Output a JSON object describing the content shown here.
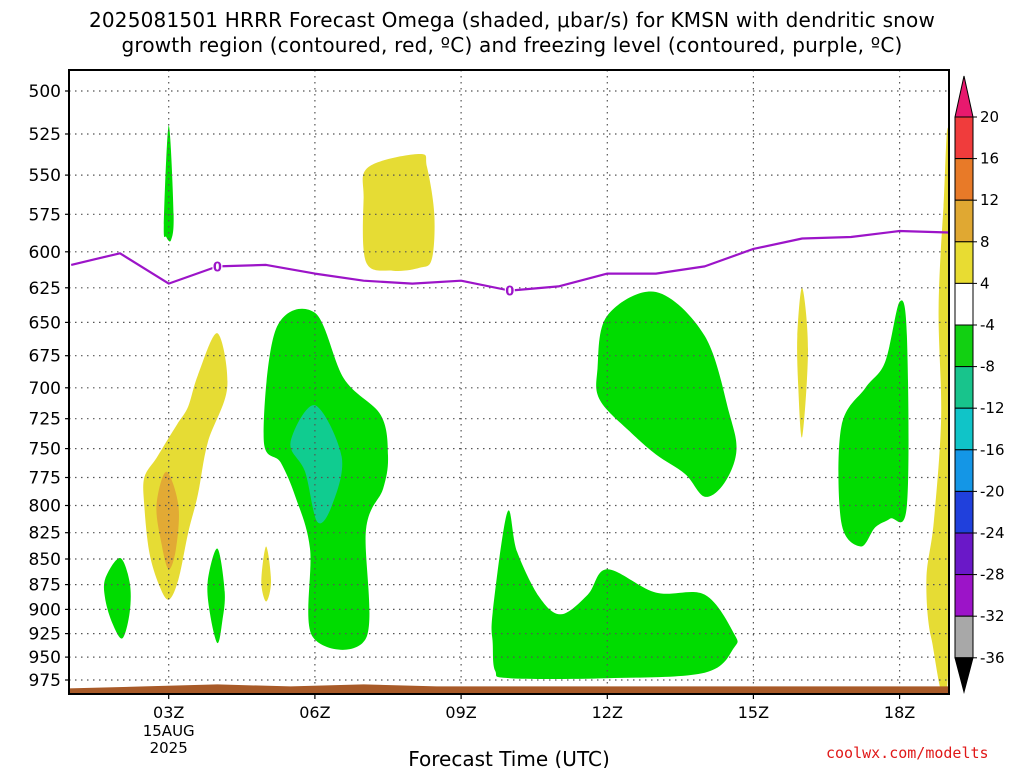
{
  "title_lines": [
    "2025081501 HRRR Forecast Omega (shaded, μbar/s) for KMSN with dendritic snow",
    "growth region (contoured, red, ºC) and freezing level (contoured, purple, ºC)"
  ],
  "watermark": "coolwx.com/modelts",
  "chart_data": {
    "type": "heatmap",
    "title": "2025081501 HRRR Forecast Omega (shaded, μbar/s) for KMSN with dendritic snow growth region (contoured, red, ºC) and freezing level (contoured, purple, ºC)",
    "xlabel": "Forecast Time (UTC)",
    "ylabel": "",
    "x_ticks": [
      {
        "hour": 3,
        "label": "03Z",
        "sublabels": [
          "15AUG",
          "2025"
        ]
      },
      {
        "hour": 6,
        "label": "06Z",
        "sublabels": []
      },
      {
        "hour": 9,
        "label": "09Z",
        "sublabels": []
      },
      {
        "hour": 12,
        "label": "12Z",
        "sublabels": []
      },
      {
        "hour": 15,
        "label": "15Z",
        "sublabels": []
      },
      {
        "hour": 18,
        "label": "18Z",
        "sublabels": []
      }
    ],
    "xlim": [
      1,
      19
    ],
    "y_ticks": [
      500,
      525,
      550,
      575,
      600,
      625,
      650,
      675,
      700,
      725,
      750,
      775,
      800,
      825,
      850,
      875,
      900,
      925,
      950,
      975
    ],
    "ylim": [
      478,
      987
    ],
    "y_scale": "log-pressure (inverted)",
    "grid": true,
    "legend": "colorbar-right",
    "colorbar": {
      "labels": [
        "20",
        "16",
        "12",
        "8",
        "4",
        "-4",
        "-8",
        "-12",
        "-16",
        "-20",
        "-24",
        "-28",
        "-32",
        "-36"
      ],
      "colors": [
        "#e8196e",
        "#f03c3c",
        "#e87a28",
        "#e0a832",
        "#e8dc32",
        "#ffffff",
        "#12d012",
        "#18c48c",
        "#10c4c8",
        "#1496e6",
        "#2040dc",
        "#6a18c8",
        "#9c14c8",
        "#a8a8a8",
        "#000000"
      ]
    },
    "omega_regions": [
      {
        "level": "-4 to -8",
        "color": "#00dc00",
        "points": [
          [
            1.7,
            869
          ],
          [
            2.0,
            849
          ],
          [
            2.2,
            873
          ],
          [
            2.2,
            903
          ],
          [
            2.05,
            930
          ],
          [
            1.85,
            915
          ],
          [
            1.7,
            890
          ]
        ]
      },
      {
        "level": "-4 to -8",
        "color": "#00dc00",
        "points": [
          [
            2.9,
            582
          ],
          [
            3.0,
            520
          ],
          [
            3.1,
            575
          ],
          [
            3.05,
            592
          ],
          [
            2.95,
            590
          ]
        ]
      },
      {
        "level": "-4 to -8",
        "color": "#00dc00",
        "points": [
          [
            3.8,
            872
          ],
          [
            4.0,
            840
          ],
          [
            4.15,
            882
          ],
          [
            4.1,
            912
          ],
          [
            4.0,
            935
          ],
          [
            3.85,
            905
          ]
        ]
      },
      {
        "level": "-4 to -8",
        "color": "#00dc00",
        "points": [
          [
            4.95,
            742
          ],
          [
            5.2,
            655
          ],
          [
            6.0,
            643
          ],
          [
            6.6,
            693
          ],
          [
            7.35,
            722
          ],
          [
            7.5,
            756
          ],
          [
            7.4,
            785
          ],
          [
            7.05,
            822
          ],
          [
            7.05,
            930
          ],
          [
            5.95,
            928
          ],
          [
            5.9,
            840
          ],
          [
            5.6,
            792
          ],
          [
            5.3,
            762
          ]
        ]
      },
      {
        "level": "-8 to -12",
        "color": "#10cc90",
        "points": [
          [
            5.5,
            745
          ],
          [
            6.0,
            714
          ],
          [
            6.55,
            757
          ],
          [
            6.35,
            800
          ],
          [
            6.05,
            815
          ],
          [
            5.8,
            770
          ]
        ]
      },
      {
        "level": "-4 to -8",
        "color": "#00dc00",
        "points": [
          [
            9.65,
            903
          ],
          [
            9.95,
            806
          ],
          [
            10.15,
            843
          ],
          [
            10.6,
            887
          ],
          [
            11.05,
            905
          ],
          [
            11.6,
            885
          ],
          [
            12.0,
            860
          ],
          [
            13.0,
            883
          ],
          [
            14.0,
            885
          ],
          [
            14.6,
            925
          ],
          [
            14.6,
            940
          ],
          [
            14.0,
            967
          ],
          [
            12.0,
            973
          ],
          [
            10.0,
            973
          ],
          [
            9.7,
            965
          ],
          [
            9.65,
            935
          ]
        ]
      },
      {
        "level": "-4 to -8",
        "color": "#00dc00",
        "points": [
          [
            11.8,
            685
          ],
          [
            12.0,
            645
          ],
          [
            13.0,
            628
          ],
          [
            14.0,
            660
          ],
          [
            14.5,
            720
          ],
          [
            14.65,
            752
          ],
          [
            14.4,
            780
          ],
          [
            14.0,
            792
          ],
          [
            13.6,
            772
          ],
          [
            13.0,
            755
          ],
          [
            12.5,
            737
          ],
          [
            11.85,
            710
          ]
        ]
      },
      {
        "level": "-4 to -8",
        "color": "#00dc00",
        "points": [
          [
            16.8,
            732
          ],
          [
            17.3,
            700
          ],
          [
            17.7,
            680
          ],
          [
            18.0,
            635
          ],
          [
            18.15,
            660
          ],
          [
            18.15,
            800
          ],
          [
            17.8,
            812
          ],
          [
            17.5,
            820
          ],
          [
            17.2,
            838
          ],
          [
            16.8,
            815
          ]
        ]
      }
    ],
    "omega_positive_regions": [
      {
        "level": "4 to 8",
        "color": "#e6dc34",
        "points": [
          [
            7.05,
            607
          ],
          [
            7.0,
            565
          ],
          [
            7.1,
            545
          ],
          [
            8.15,
            537
          ],
          [
            8.3,
            545
          ],
          [
            8.45,
            575
          ],
          [
            8.4,
            605
          ],
          [
            8.15,
            611
          ],
          [
            7.6,
            613
          ]
        ]
      },
      {
        "level": "4 to 8",
        "color": "#e6dc34",
        "points": [
          [
            2.5,
            800
          ],
          [
            2.5,
            775
          ],
          [
            2.75,
            758
          ],
          [
            3.0,
            741
          ],
          [
            3.2,
            728
          ],
          [
            3.4,
            715
          ],
          [
            3.6,
            690
          ],
          [
            4.0,
            658
          ],
          [
            4.2,
            700
          ],
          [
            3.8,
            745
          ],
          [
            3.6,
            790
          ],
          [
            3.4,
            825
          ],
          [
            3.2,
            870
          ],
          [
            3.0,
            890
          ],
          [
            2.8,
            875
          ],
          [
            2.6,
            843
          ]
        ]
      },
      {
        "level": "8 to 12",
        "color": "#e2aa34",
        "points": [
          [
            2.75,
            800
          ],
          [
            2.95,
            770
          ],
          [
            3.2,
            800
          ],
          [
            3.15,
            840
          ],
          [
            3.0,
            860
          ],
          [
            2.85,
            835
          ]
        ]
      },
      {
        "level": "4 to 8",
        "color": "#e6dc34",
        "points": [
          [
            4.9,
            872
          ],
          [
            5.0,
            838
          ],
          [
            5.1,
            872
          ],
          [
            5.0,
            892
          ]
        ]
      },
      {
        "level": "4 to 8",
        "color": "#e6dc34",
        "points": [
          [
            15.9,
            660
          ],
          [
            16.0,
            625
          ],
          [
            16.12,
            670
          ],
          [
            16.0,
            740
          ],
          [
            15.92,
            700
          ]
        ]
      },
      {
        "level": "4 to 8",
        "color": "#e6dc34",
        "points": [
          [
            18.8,
            640
          ],
          [
            18.9,
            570
          ],
          [
            19.0,
            538
          ],
          [
            19.0,
            960
          ],
          [
            18.65,
            930
          ],
          [
            18.55,
            870
          ],
          [
            18.7,
            815
          ],
          [
            18.85,
            725
          ]
        ]
      }
    ],
    "freezing_level": {
      "label": "0",
      "points": [
        [
          1.0,
          609
        ],
        [
          1.5,
          605
        ],
        [
          2.0,
          601
        ],
        [
          3.0,
          622
        ],
        [
          4.0,
          610
        ],
        [
          5.0,
          609
        ],
        [
          6.0,
          615
        ],
        [
          7.0,
          620
        ],
        [
          8.0,
          622
        ],
        [
          9.0,
          620
        ],
        [
          10.0,
          627
        ],
        [
          11.0,
          624
        ],
        [
          12.0,
          615
        ],
        [
          13.0,
          615
        ],
        [
          14.0,
          610
        ],
        [
          15.0,
          598
        ],
        [
          16.0,
          591
        ],
        [
          17.0,
          590
        ],
        [
          18.0,
          586
        ],
        [
          19.0,
          587
        ]
      ],
      "label_positions": [
        4.0,
        10.0
      ]
    },
    "terrain_band": {
      "color": "#a85a28",
      "top_pressure": 981
    }
  }
}
